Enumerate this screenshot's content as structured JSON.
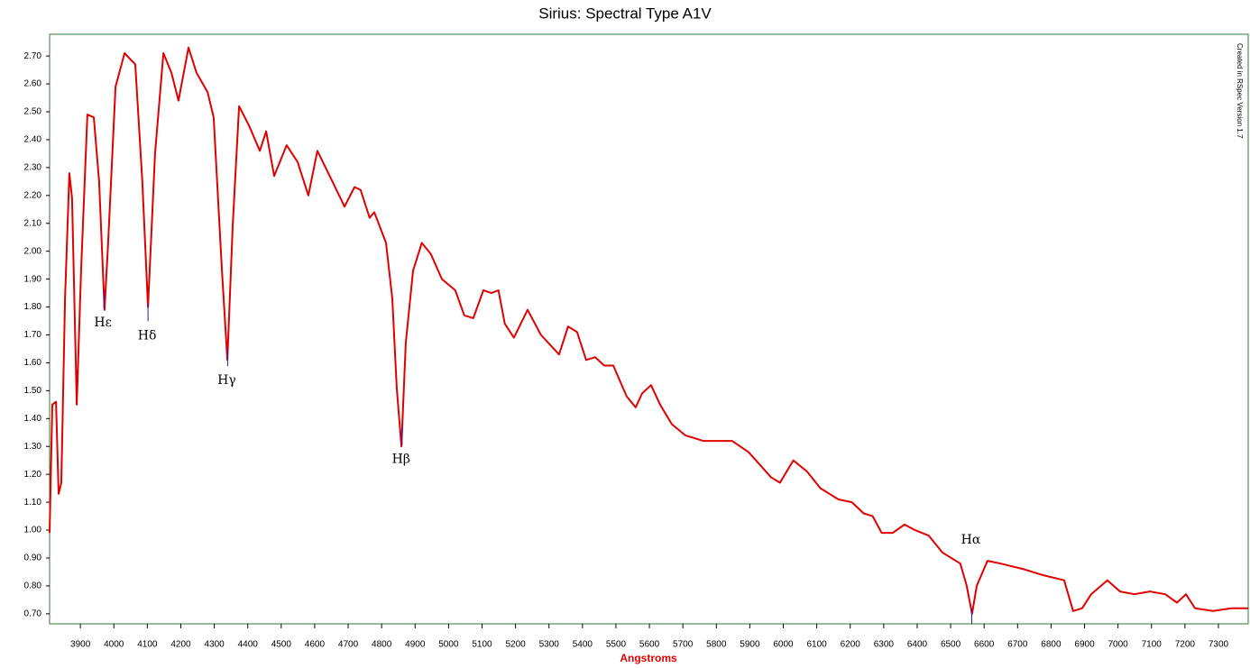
{
  "chart_data": {
    "type": "line",
    "title": "Sirius: Spectral Type A1V",
    "x_label": "Angstroms",
    "side_note": "Created in RSpec Version 1.7",
    "color": "#e00000",
    "x": [
      3808,
      3816,
      3827,
      3835,
      3843,
      3854,
      3867,
      3875,
      3889,
      3902,
      3921,
      3940,
      3956,
      3972,
      3983,
      4005,
      4032,
      4064,
      4085,
      4102,
      4123,
      4148,
      4172,
      4193,
      4223,
      4247,
      4280,
      4298,
      4323,
      4339,
      4355,
      4374,
      4404,
      4436,
      4455,
      4479,
      4516,
      4549,
      4581,
      4608,
      4657,
      4689,
      4719,
      4737,
      4764,
      4778,
      4813,
      4832,
      4845,
      4859,
      4872,
      4894,
      4920,
      4947,
      4980,
      5020,
      5047,
      5074,
      5104,
      5128,
      5149,
      5168,
      5195,
      5236,
      5276,
      5330,
      5357,
      5384,
      5411,
      5438,
      5465,
      5492,
      5532,
      5559,
      5578,
      5605,
      5632,
      5667,
      5707,
      5761,
      5815,
      5847,
      5896,
      5963,
      5990,
      6030,
      6071,
      6111,
      6165,
      6205,
      6240,
      6267,
      6294,
      6327,
      6362,
      6394,
      6435,
      6475,
      6529,
      6548,
      6564,
      6578,
      6610,
      6650,
      6718,
      6772,
      6839,
      6866,
      6893,
      6920,
      6968,
      7006,
      7049,
      7095,
      7141,
      7176,
      7203,
      7230,
      7284,
      7338,
      7389
    ],
    "values": [
      0.99,
      1.45,
      1.46,
      1.13,
      1.17,
      1.83,
      2.28,
      2.19,
      1.45,
      1.93,
      2.49,
      2.48,
      2.25,
      1.79,
      2.03,
      2.59,
      2.71,
      2.67,
      2.25,
      1.8,
      2.35,
      2.71,
      2.64,
      2.54,
      2.73,
      2.64,
      2.57,
      2.48,
      1.93,
      1.61,
      2.09,
      2.52,
      2.45,
      2.36,
      2.43,
      2.27,
      2.38,
      2.32,
      2.2,
      2.36,
      2.24,
      2.16,
      2.23,
      2.22,
      2.12,
      2.14,
      2.03,
      1.83,
      1.51,
      1.3,
      1.67,
      1.93,
      2.03,
      1.99,
      1.9,
      1.86,
      1.77,
      1.76,
      1.86,
      1.85,
      1.86,
      1.74,
      1.69,
      1.79,
      1.7,
      1.63,
      1.73,
      1.71,
      1.61,
      1.62,
      1.59,
      1.59,
      1.48,
      1.44,
      1.49,
      1.52,
      1.45,
      1.38,
      1.34,
      1.32,
      1.32,
      1.32,
      1.28,
      1.19,
      1.17,
      1.25,
      1.21,
      1.15,
      1.11,
      1.1,
      1.06,
      1.05,
      0.99,
      0.99,
      1.02,
      1.0,
      0.98,
      0.92,
      0.88,
      0.8,
      0.7,
      0.8,
      0.89,
      0.88,
      0.86,
      0.84,
      0.82,
      0.71,
      0.72,
      0.77,
      0.82,
      0.78,
      0.77,
      0.78,
      0.77,
      0.74,
      0.77,
      0.72,
      0.71,
      0.72,
      0.72
    ],
    "annotations": [
      {
        "text": "Hε",
        "x": 3970
      },
      {
        "text": "Hδ",
        "x": 4102
      },
      {
        "text": "Hγ",
        "x": 4340
      },
      {
        "text": "Hβ",
        "x": 4861
      },
      {
        "text": "Hα",
        "x": 6563
      }
    ],
    "xlim": [
      3808,
      7389
    ],
    "ylim": [
      0.664,
      2.778
    ],
    "xticks": [
      3900,
      4000,
      4100,
      4200,
      4300,
      4400,
      4500,
      4600,
      4700,
      4800,
      4900,
      5000,
      5100,
      5200,
      5300,
      5400,
      5500,
      5600,
      5700,
      5800,
      5900,
      6000,
      6100,
      6200,
      6300,
      6400,
      6500,
      6600,
      6700,
      6800,
      6900,
      7000,
      7100,
      7200,
      7300
    ],
    "yticks": [
      {
        "value": 0.7,
        "label": "0.70"
      },
      {
        "value": 0.8,
        "label": "0.80"
      },
      {
        "value": 0.9,
        "label": "0.90"
      },
      {
        "value": 1.0,
        "label": "1.00"
      },
      {
        "value": 1.1,
        "label": "1.10"
      },
      {
        "value": 1.2,
        "label": "1.20"
      },
      {
        "value": 1.3,
        "label": "1.30"
      },
      {
        "value": 1.4,
        "label": "1.40"
      },
      {
        "value": 1.5,
        "label": "1.50"
      },
      {
        "value": 1.6,
        "label": "1.60"
      },
      {
        "value": 1.7,
        "label": "1.70"
      },
      {
        "value": 1.8,
        "label": "1.80"
      },
      {
        "value": 1.9,
        "label": "1.90"
      },
      {
        "value": 2.0,
        "label": "2.00"
      },
      {
        "value": 2.1,
        "label": "2.10"
      },
      {
        "value": 2.2,
        "label": "2.20"
      },
      {
        "value": 2.3,
        "label": "2.30"
      },
      {
        "value": 2.4,
        "label": "2.40"
      },
      {
        "value": 2.5,
        "label": "2.50"
      },
      {
        "value": 2.6,
        "label": "2.60"
      },
      {
        "value": 2.7,
        "label": "2.70"
      }
    ]
  }
}
